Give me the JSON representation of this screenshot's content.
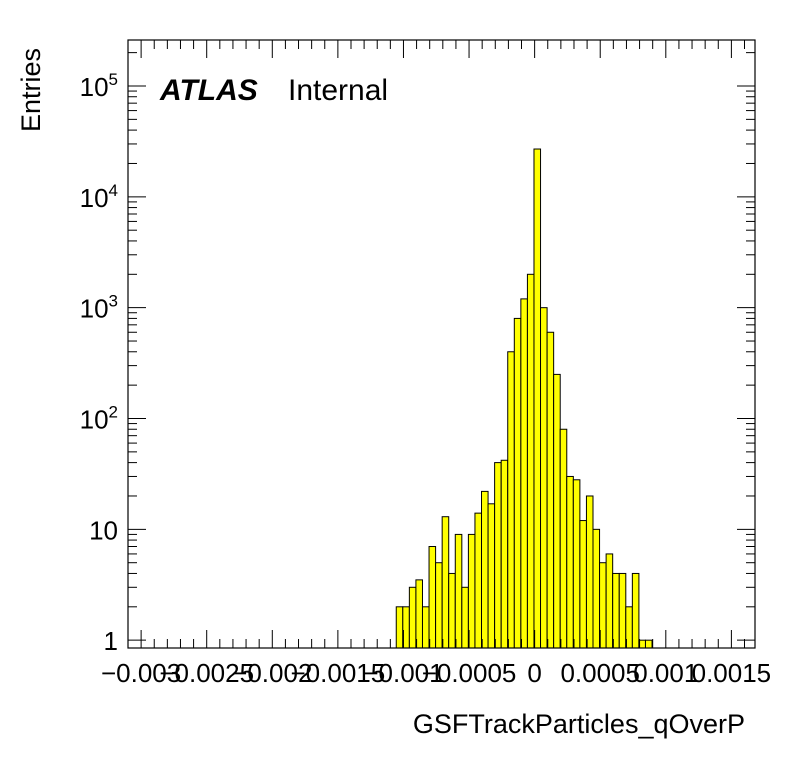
{
  "chart_data": {
    "type": "bar",
    "title": "",
    "xlabel": "GSFTrackParticles_qOverP",
    "ylabel": "Entries",
    "x_tick_labels": [
      "−0.003",
      "−0.0025",
      "−0.002",
      "−0.0015",
      "−0.001",
      "−0.0005",
      "0",
      "0.0005",
      "0.001",
      "0.0015"
    ],
    "x_ticks": [
      -0.003,
      -0.0025,
      -0.002,
      -0.0015,
      -0.001,
      -0.0005,
      0,
      0.0005,
      0.001,
      0.0015
    ],
    "y_tick_labels": [
      {
        "base": "1",
        "exp": ""
      },
      {
        "base": "10",
        "exp": ""
      },
      {
        "base": "10",
        "exp": "2"
      },
      {
        "base": "10",
        "exp": "3"
      },
      {
        "base": "10",
        "exp": "4"
      },
      {
        "base": "10",
        "exp": "5"
      }
    ],
    "y_ticks": [
      1,
      10,
      100,
      1000,
      10000,
      100000
    ],
    "xlim": [
      -0.0031,
      0.00168
    ],
    "ylim": [
      0.85,
      260000
    ],
    "yscale": "log",
    "grid": false,
    "fill_color": "#ffff00",
    "bin_width": 5e-05,
    "bins": [
      {
        "x": -0.00103,
        "y": 2
      },
      {
        "x": -0.00098,
        "y": 2
      },
      {
        "x": -0.00093,
        "y": 3
      },
      {
        "x": -0.00088,
        "y": 3.5
      },
      {
        "x": -0.00083,
        "y": 2
      },
      {
        "x": -0.00078,
        "y": 7
      },
      {
        "x": -0.00073,
        "y": 5
      },
      {
        "x": -0.00068,
        "y": 13
      },
      {
        "x": -0.00063,
        "y": 4
      },
      {
        "x": -0.00058,
        "y": 9
      },
      {
        "x": -0.00053,
        "y": 3
      },
      {
        "x": -0.00048,
        "y": 9
      },
      {
        "x": -0.00043,
        "y": 14
      },
      {
        "x": -0.00038,
        "y": 22
      },
      {
        "x": -0.00033,
        "y": 17
      },
      {
        "x": -0.00028,
        "y": 40
      },
      {
        "x": -0.00023,
        "y": 42
      },
      {
        "x": -0.00018,
        "y": 400
      },
      {
        "x": -0.00013,
        "y": 800
      },
      {
        "x": -8e-05,
        "y": 1200
      },
      {
        "x": -3e-05,
        "y": 2000
      },
      {
        "x": 2e-05,
        "y": 27000
      },
      {
        "x": 7e-05,
        "y": 1000
      },
      {
        "x": 0.00012,
        "y": 600
      },
      {
        "x": 0.00017,
        "y": 250
      },
      {
        "x": 0.00022,
        "y": 80
      },
      {
        "x": 0.00027,
        "y": 30
      },
      {
        "x": 0.00032,
        "y": 28
      },
      {
        "x": 0.00037,
        "y": 12
      },
      {
        "x": 0.00042,
        "y": 20
      },
      {
        "x": 0.00047,
        "y": 10
      },
      {
        "x": 0.00052,
        "y": 5
      },
      {
        "x": 0.00057,
        "y": 6
      },
      {
        "x": 0.00062,
        "y": 4
      },
      {
        "x": 0.00067,
        "y": 4
      },
      {
        "x": 0.00072,
        "y": 2
      },
      {
        "x": 0.00077,
        "y": 4
      },
      {
        "x": 0.00082,
        "y": 1
      },
      {
        "x": 0.00087,
        "y": 1
      }
    ]
  },
  "annotation": {
    "atlas": "ATLAS",
    "status": "Internal"
  }
}
